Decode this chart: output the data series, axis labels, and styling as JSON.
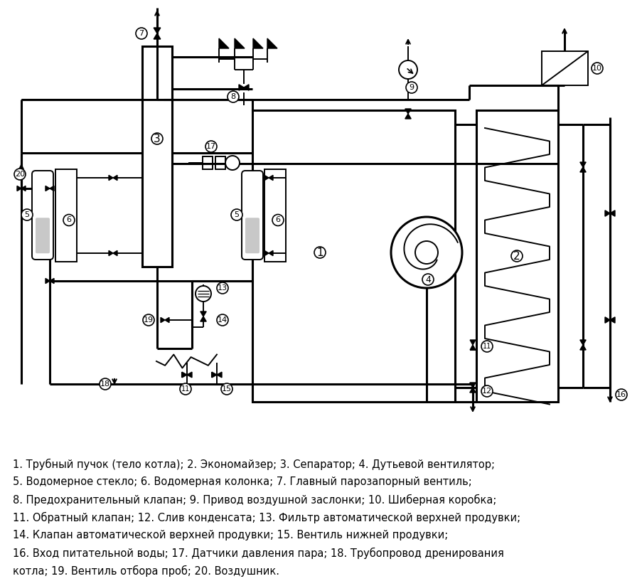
{
  "legend_lines": [
    "1. Трубный пучок (тело котла); 2. Экономайзер; 3. Сепаратор; 4. Дутьевой вентилятор;",
    "5. Водомерное стекло; 6. Водомерная колонка; 7. Главный парозапорный вентиль;",
    "8. Предохранительный клапан; 9. Привод воздушной заслонки; 10. Шиберная коробка;",
    "11. Обратный клапан; 12. Слив конденсата; 13. Фильтр автоматической верхней продувки;",
    "14. Клапан автоматической верхней продувки; 15. Вентиль нижней продувки;",
    "16. Вход питательной воды; 17. Датчики давления пара; 18. Трубопровод дренирования",
    "котла; 19. Вентиль отбора проб; 20. Воздушник."
  ],
  "bg_color": "#ffffff",
  "line_color": "#000000",
  "label_color": "#000000",
  "font_size_legend": 10.5
}
